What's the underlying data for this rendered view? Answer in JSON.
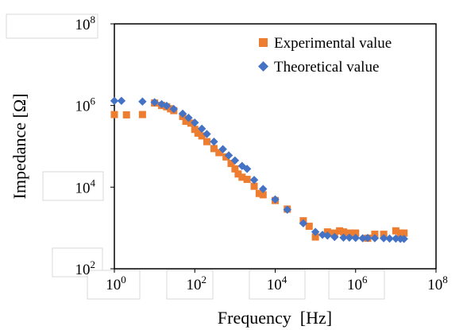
{
  "chart_data": {
    "type": "scatter",
    "xscale": "log",
    "yscale": "log",
    "xlim": [
      1,
      100000000
    ],
    "ylim": [
      100,
      100000000
    ],
    "xlabel": "Frequency  [Hz]",
    "ylabel": "Impedance  [Ω]",
    "x_ticks": [
      {
        "value": 1,
        "base": "10",
        "exp": "0"
      },
      {
        "value": 100,
        "base": "10",
        "exp": "2"
      },
      {
        "value": 10000,
        "base": "10",
        "exp": "4"
      },
      {
        "value": 1000000,
        "base": "10",
        "exp": "6"
      },
      {
        "value": 100000000,
        "base": "10",
        "exp": "8"
      }
    ],
    "y_ticks": [
      {
        "value": 100,
        "base": "10",
        "exp": "2"
      },
      {
        "value": 10000,
        "base": "10",
        "exp": "4"
      },
      {
        "value": 1000000,
        "base": "10",
        "exp": "6"
      },
      {
        "value": 100000000,
        "base": "10",
        "exp": "8"
      }
    ],
    "grid": false,
    "legend_position": "top-right",
    "series": [
      {
        "name": "Experimental value",
        "marker": "square",
        "color": "#ed7d31",
        "points": [
          [
            1,
            600000
          ],
          [
            2,
            590000
          ],
          [
            5,
            600000
          ],
          [
            10,
            1150000
          ],
          [
            15,
            1000000
          ],
          [
            20,
            930000
          ],
          [
            25,
            830000
          ],
          [
            30,
            750000
          ],
          [
            50,
            540000
          ],
          [
            60,
            410000
          ],
          [
            80,
            370000
          ],
          [
            100,
            260000
          ],
          [
            120,
            210000
          ],
          [
            150,
            180000
          ],
          [
            200,
            130000
          ],
          [
            300,
            88000
          ],
          [
            400,
            70000
          ],
          [
            600,
            55000
          ],
          [
            800,
            38000
          ],
          [
            1000,
            28000
          ],
          [
            1200,
            21000
          ],
          [
            1500,
            17500
          ],
          [
            2000,
            15500
          ],
          [
            3000,
            10500
          ],
          [
            4000,
            7000
          ],
          [
            5000,
            6500
          ],
          [
            10000,
            4700
          ],
          [
            20000,
            2900
          ],
          [
            50000,
            1500
          ],
          [
            70000,
            1100
          ],
          [
            100000,
            600
          ],
          [
            200000,
            800
          ],
          [
            300000,
            750
          ],
          [
            400000,
            850
          ],
          [
            500000,
            800
          ],
          [
            700000,
            750
          ],
          [
            1000000,
            750
          ],
          [
            2000000,
            560
          ],
          [
            3000000,
            700
          ],
          [
            5000000,
            700
          ],
          [
            10000000,
            850
          ],
          [
            13000000,
            750
          ],
          [
            16000000,
            750
          ]
        ]
      },
      {
        "name": "Theoretical value",
        "marker": "diamond",
        "color": "#4472c4",
        "points": [
          [
            1,
            1300000
          ],
          [
            1.5,
            1300000
          ],
          [
            5,
            1250000
          ],
          [
            10,
            1200000
          ],
          [
            15,
            1080000
          ],
          [
            20,
            980000
          ],
          [
            30,
            820000
          ],
          [
            50,
            630000
          ],
          [
            70,
            500000
          ],
          [
            100,
            380000
          ],
          [
            150,
            270000
          ],
          [
            200,
            200000
          ],
          [
            300,
            130000
          ],
          [
            500,
            85000
          ],
          [
            700,
            60000
          ],
          [
            1000,
            45000
          ],
          [
            1500,
            33000
          ],
          [
            2000,
            28000
          ],
          [
            3000,
            15000
          ],
          [
            5000,
            9000
          ],
          [
            10000,
            5000
          ],
          [
            20000,
            2800
          ],
          [
            50000,
            1300
          ],
          [
            100000,
            800
          ],
          [
            150000,
            680
          ],
          [
            200000,
            650
          ],
          [
            300000,
            600
          ],
          [
            500000,
            580
          ],
          [
            700000,
            580
          ],
          [
            1000000,
            570
          ],
          [
            1500000,
            560
          ],
          [
            2000000,
            570
          ],
          [
            3000000,
            560
          ],
          [
            5000000,
            560
          ],
          [
            7000000,
            550
          ],
          [
            10000000,
            550
          ],
          [
            13000000,
            540
          ],
          [
            16000000,
            540
          ]
        ]
      }
    ]
  }
}
